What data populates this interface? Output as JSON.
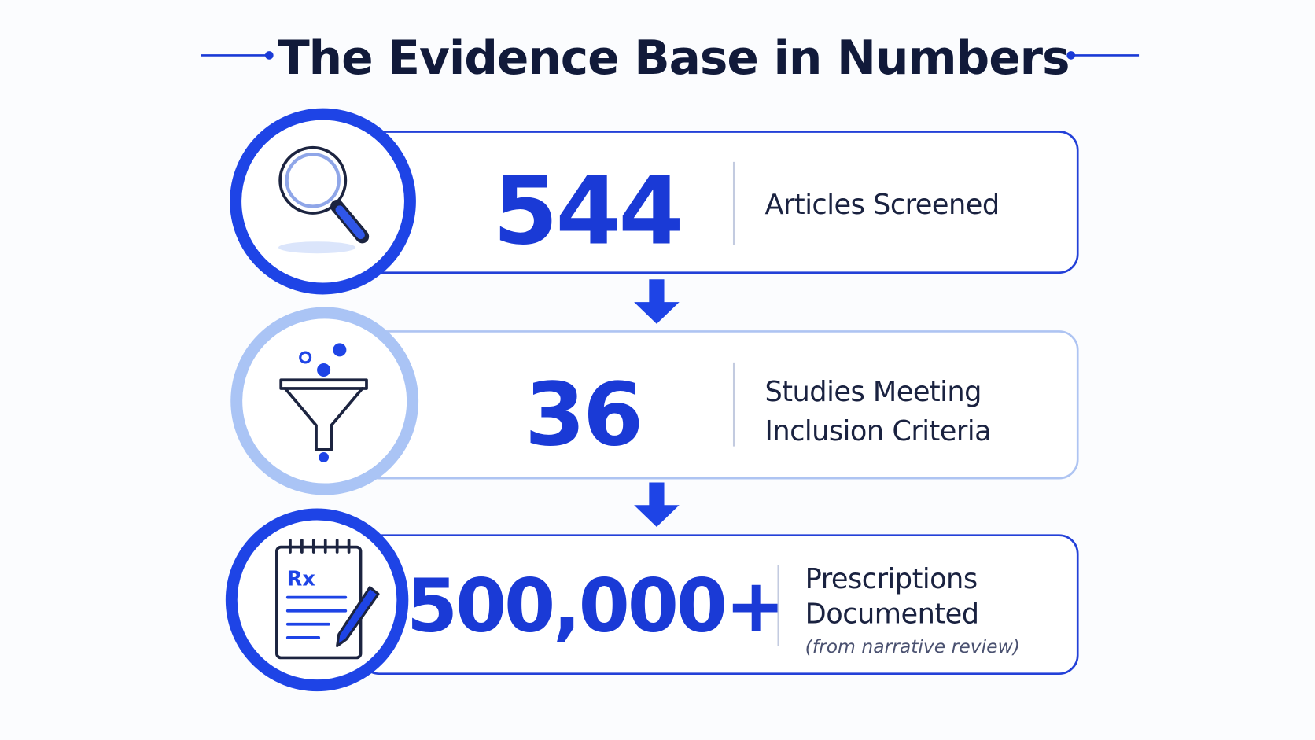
{
  "title": "The Evidence Base in Numbers",
  "stats": [
    {
      "number": "544",
      "label": [
        "Articles Screened"
      ]
    },
    {
      "number": "36",
      "label": [
        "Studies Meeting",
        "Inclusion Criteria"
      ]
    },
    {
      "number": "500,000+",
      "label": [
        "Prescriptions",
        "Documented"
      ],
      "note": "(from narrative review)",
      "icon_label": "Rx"
    }
  ]
}
